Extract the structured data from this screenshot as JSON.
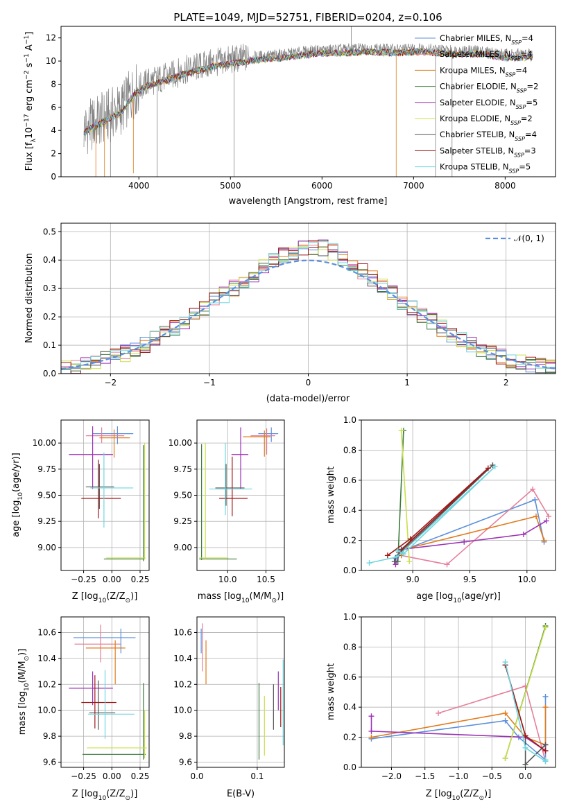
{
  "page": {
    "title": "PLATE=1049, MJD=52751, FIBERID=0204, z=0.106"
  },
  "legend_colors": [
    {
      "name": "Chabrier MILES",
      "n": "4",
      "color": "#5b8fdc"
    },
    {
      "name": "Salpeter MILES",
      "n": "4",
      "color": "#e57f9b"
    },
    {
      "name": "Kroupa MILES",
      "n": "4",
      "color": "#e07b1c"
    },
    {
      "name": "Chabrier ELODIE",
      "n": "2",
      "color": "#3b7a3b"
    },
    {
      "name": "Salpeter ELODIE",
      "n": "5",
      "color": "#9b33b5"
    },
    {
      "name": "Kroupa ELODIE",
      "n": "2",
      "color": "#c9e04a"
    },
    {
      "name": "Chabrier STELIB",
      "n": "4",
      "color": "#555555"
    },
    {
      "name": "Salpeter STELIB",
      "n": "3",
      "color": "#a01818"
    },
    {
      "name": "Kroupa STELIB",
      "n": "5",
      "color": "#6fd6df"
    }
  ],
  "chart_data": [
    {
      "id": "spectrum",
      "type": "line",
      "xlabel": "wavelength [Angstrom, rest frame]",
      "ylabel": "Flux [f",
      "ylabel_sub": "λ",
      "ylabel_rest": "10",
      "ylabel_exp": "−17",
      "ylabel_tail": " erg cm",
      "xlim": [
        3150,
        8550
      ],
      "ylim": [
        0,
        13
      ],
      "xticks": [
        4000,
        5000,
        6000,
        7000,
        8000
      ],
      "yticks": [
        0,
        2,
        4,
        6,
        8,
        10,
        12
      ],
      "legend_placement": "right",
      "legend_suffix_sub": "SSP",
      "series_note": "data (grey) and 9 model fits",
      "continuum": [
        [
          3400,
          4.1
        ],
        [
          3600,
          5.0
        ],
        [
          3800,
          5.8
        ],
        [
          3950,
          7.4
        ],
        [
          4100,
          8.2
        ],
        [
          4300,
          8.6
        ],
        [
          4500,
          9.2
        ],
        [
          4800,
          9.8
        ],
        [
          5000,
          10.1
        ],
        [
          5300,
          10.4
        ],
        [
          5600,
          10.6
        ],
        [
          5900,
          10.9
        ],
        [
          6200,
          11.0
        ],
        [
          6500,
          11.1
        ],
        [
          6800,
          11.0
        ],
        [
          7100,
          11.1
        ],
        [
          7400,
          10.9
        ],
        [
          7700,
          10.9
        ],
        [
          8000,
          10.6
        ],
        [
          8300,
          10.6
        ]
      ]
    },
    {
      "id": "residuals",
      "type": "line",
      "xlabel": "(data-model)/error",
      "ylabel": "Normed distribution",
      "xlim": [
        -2.5,
        2.5
      ],
      "ylim": [
        0,
        0.53
      ],
      "xticks": [
        -2,
        -1,
        0,
        1,
        2
      ],
      "xtick_labels": [
        "−2",
        "−1",
        "0",
        "1",
        "2"
      ],
      "yticks": [
        0.0,
        0.1,
        0.2,
        0.3,
        0.4,
        0.5
      ],
      "ytick_labels": [
        "0.0",
        "0.1",
        "0.2",
        "0.3",
        "0.4",
        "0.5"
      ],
      "grid": true,
      "legend": "𝒩(0, 1)",
      "legend_placement": "top-right",
      "gauss_sigma": 1.0
    },
    {
      "id": "age-vs-Z",
      "type": "scatter",
      "xlabel": "Z [log",
      "xlabel_sub": "10",
      "xlabel_tail": "(Z/Z",
      "xlabel_end": ")]",
      "ylabel": "age  [log",
      "ylabel_sub": "10",
      "ylabel_tail": "(age/yr)]",
      "xlim": [
        -0.45,
        0.33
      ],
      "ylim": [
        8.78,
        10.22
      ],
      "xticks": [
        -0.25,
        0.0,
        0.25
      ],
      "xtick_labels": [
        "−0.25",
        "0.00",
        "0.25"
      ],
      "yticks": [
        9.0,
        9.25,
        9.5,
        9.75,
        10.0
      ],
      "ytick_labels": [
        "9.00",
        "9.25",
        "9.50",
        "9.75",
        "10.00"
      ],
      "grid": true,
      "crosses": [
        {
          "x": 0.05,
          "y": 10.09,
          "xl": -0.17,
          "xh": 0.19,
          "yl": 9.99,
          "yh": 10.16,
          "c": 0
        },
        {
          "x": -0.09,
          "y": 10.07,
          "xl": -0.23,
          "xh": 0.11,
          "yl": 10.0,
          "yh": 10.15,
          "c": 1
        },
        {
          "x": 0.02,
          "y": 10.05,
          "xl": -0.11,
          "xh": 0.16,
          "yl": 9.86,
          "yh": 10.13,
          "c": 2
        },
        {
          "x": 0.28,
          "y": 8.89,
          "xl": -0.07,
          "xh": 0.29,
          "yl": 8.87,
          "yh": 9.98,
          "c": 3
        },
        {
          "x": -0.17,
          "y": 9.89,
          "xl": -0.38,
          "xh": 0.01,
          "yl": 9.56,
          "yh": 10.16,
          "c": 4
        },
        {
          "x": 0.29,
          "y": 8.9,
          "xl": -0.05,
          "xh": 0.3,
          "yl": 8.89,
          "yh": 10.0,
          "c": 5
        },
        {
          "x": -0.11,
          "y": 9.58,
          "xl": -0.23,
          "xh": 0.02,
          "yl": 9.37,
          "yh": 9.8,
          "c": 6
        },
        {
          "x": -0.12,
          "y": 9.47,
          "xl": -0.27,
          "xh": 0.08,
          "yl": 9.28,
          "yh": 9.84,
          "c": 7
        },
        {
          "x": -0.07,
          "y": 9.57,
          "xl": -0.19,
          "xh": 0.19,
          "yl": 9.19,
          "yh": 9.91,
          "c": 8
        }
      ]
    },
    {
      "id": "age-vs-mass",
      "type": "scatter",
      "xlabel": "mass [log",
      "xlabel_sub": "10",
      "xlabel_tail": "(M/M",
      "xlabel_end": ")]",
      "xlim": [
        9.6,
        10.74
      ],
      "ylim": [
        8.78,
        10.22
      ],
      "xticks": [
        10.0,
        10.5
      ],
      "xtick_labels": [
        "10.0",
        "10.5"
      ],
      "yticks": [
        9.0,
        9.25,
        9.5,
        9.75,
        10.0
      ],
      "ytick_labels": [
        "9.00",
        "9.25",
        "9.50",
        "9.75",
        "10.00"
      ],
      "grid": true,
      "crosses": [
        {
          "x": 10.57,
          "y": 10.09,
          "xl": 10.4,
          "xh": 10.66,
          "yl": 10.01,
          "yh": 10.15,
          "c": 0
        },
        {
          "x": 10.51,
          "y": 10.07,
          "xl": 10.3,
          "xh": 10.62,
          "yl": 9.89,
          "yh": 10.14,
          "c": 1
        },
        {
          "x": 10.48,
          "y": 10.06,
          "xl": 10.2,
          "xh": 10.56,
          "yl": 9.87,
          "yh": 10.12,
          "c": 2
        },
        {
          "x": 9.66,
          "y": 8.89,
          "xl": 9.63,
          "xh": 10.12,
          "yl": 8.88,
          "yh": 9.99,
          "c": 3
        },
        {
          "x": 10.17,
          "y": 9.89,
          "xl": 10.05,
          "xh": 10.27,
          "yl": 9.56,
          "yh": 10.15,
          "c": 4
        },
        {
          "x": 9.71,
          "y": 8.9,
          "xl": 9.63,
          "xh": 10.01,
          "yl": 8.89,
          "yh": 10.0,
          "c": 5
        },
        {
          "x": 9.98,
          "y": 9.57,
          "xl": 9.84,
          "xh": 10.22,
          "yl": 9.4,
          "yh": 9.8,
          "c": 6
        },
        {
          "x": 10.06,
          "y": 9.47,
          "xl": 9.89,
          "xh": 10.26,
          "yl": 9.3,
          "yh": 9.87,
          "c": 7
        },
        {
          "x": 9.97,
          "y": 9.56,
          "xl": 9.76,
          "xh": 10.32,
          "yl": 9.31,
          "yh": 10.0,
          "c": 8
        }
      ]
    },
    {
      "id": "mass-weight-vs-age",
      "type": "line",
      "xlabel": "age  [log",
      "xlabel_sub": "10",
      "xlabel_tail": "(age/yr)]",
      "ylabel": "mass weight",
      "xlim": [
        8.55,
        10.25
      ],
      "ylim": [
        0.0,
        1.0
      ],
      "xticks": [
        9.0,
        9.5,
        10.0
      ],
      "xtick_labels": [
        "9.0",
        "9.5",
        "10.0"
      ],
      "yticks": [
        0.0,
        0.2,
        0.4,
        0.6,
        0.8,
        1.0
      ],
      "ytick_labels": [
        "0.0",
        "0.2",
        "0.4",
        "0.6",
        "0.8",
        "1.0"
      ],
      "grid": true,
      "series": [
        {
          "c": 0,
          "points": [
            [
              8.85,
              0.08
            ],
            [
              8.9,
              0.13
            ],
            [
              10.07,
              0.47
            ],
            [
              10.15,
              0.19
            ]
          ]
        },
        {
          "c": 1,
          "points": [
            [
              8.9,
              0.1
            ],
            [
              9.3,
              0.04
            ],
            [
              10.05,
              0.54
            ],
            [
              10.19,
              0.36
            ]
          ]
        },
        {
          "c": 2,
          "points": [
            [
              8.9,
              0.1
            ],
            [
              8.92,
              0.14
            ],
            [
              10.08,
              0.36
            ],
            [
              10.15,
              0.2
            ]
          ]
        },
        {
          "c": 3,
          "points": [
            [
              8.87,
              0.06
            ],
            [
              8.92,
              0.93
            ]
          ]
        },
        {
          "c": 4,
          "points": [
            [
              8.85,
              0.04
            ],
            [
              8.9,
              0.14
            ],
            [
              9.45,
              0.19
            ],
            [
              9.97,
              0.24
            ],
            [
              10.17,
              0.33
            ]
          ]
        },
        {
          "c": 5,
          "points": [
            [
              8.9,
              0.93
            ],
            [
              8.97,
              0.06
            ]
          ]
        },
        {
          "c": 6,
          "points": [
            [
              8.84,
              0.06
            ],
            [
              8.9,
              0.14
            ],
            [
              9.7,
              0.7
            ],
            [
              8.87,
              0.1
            ]
          ]
        },
        {
          "c": 7,
          "points": [
            [
              8.78,
              0.1
            ],
            [
              8.98,
              0.21
            ],
            [
              9.66,
              0.68
            ],
            [
              8.88,
              0.12
            ]
          ]
        },
        {
          "c": 8,
          "points": [
            [
              8.62,
              0.05
            ],
            [
              8.86,
              0.09
            ],
            [
              9.72,
              0.69
            ],
            [
              8.92,
              0.11
            ],
            [
              8.87,
              0.13
            ]
          ]
        }
      ]
    },
    {
      "id": "mass-vs-Z",
      "type": "scatter",
      "ylabel": "mass [log",
      "ylabel_sub": "10",
      "ylabel_tail": "(M/M",
      "ylabel_end": ")]",
      "xlabel": "Z [log",
      "xlabel_sub": "10",
      "xlabel_tail": "(Z/Z",
      "xlabel_end": ")]",
      "xlim": [
        -0.45,
        0.33
      ],
      "ylim": [
        9.56,
        10.72
      ],
      "xticks": [
        -0.25,
        0.0,
        0.25
      ],
      "xtick_labels": [
        "−0.25",
        "0.00",
        "0.25"
      ],
      "yticks": [
        9.6,
        9.8,
        10.0,
        10.2,
        10.4,
        10.6
      ],
      "ytick_labels": [
        "9.6",
        "9.8",
        "10.0",
        "10.2",
        "10.4",
        "10.6"
      ],
      "grid": true,
      "crosses": [
        {
          "x": 0.08,
          "y": 10.56,
          "xl": -0.34,
          "xh": 0.21,
          "yl": 10.44,
          "yh": 10.63,
          "c": 0
        },
        {
          "x": -0.1,
          "y": 10.51,
          "xl": -0.33,
          "xh": 0.08,
          "yl": 10.37,
          "yh": 10.66,
          "c": 1
        },
        {
          "x": 0.03,
          "y": 10.48,
          "xl": -0.23,
          "xh": 0.12,
          "yl": 10.2,
          "yh": 10.54,
          "c": 2
        },
        {
          "x": 0.28,
          "y": 9.66,
          "xl": -0.26,
          "xh": 0.3,
          "yl": 9.62,
          "yh": 10.21,
          "c": 3
        },
        {
          "x": -0.17,
          "y": 10.17,
          "xl": -0.38,
          "xh": 0.01,
          "yl": 10.04,
          "yh": 10.3,
          "c": 4
        },
        {
          "x": 0.29,
          "y": 9.71,
          "xl": -0.22,
          "xh": 0.31,
          "yl": 9.63,
          "yh": 10.0,
          "c": 5
        },
        {
          "x": -0.12,
          "y": 9.98,
          "xl": -0.2,
          "xh": 0.03,
          "yl": 9.85,
          "yh": 10.23,
          "c": 6
        },
        {
          "x": -0.15,
          "y": 10.06,
          "xl": -0.27,
          "xh": 0.04,
          "yl": 9.86,
          "yh": 10.27,
          "c": 7
        },
        {
          "x": -0.06,
          "y": 9.97,
          "xl": -0.21,
          "xh": 0.2,
          "yl": 9.78,
          "yh": 10.31,
          "c": 8
        }
      ]
    },
    {
      "id": "mass-vs-ebv",
      "type": "scatter",
      "xlabel": "E(B-V)",
      "xlim": [
        0.0,
        0.145
      ],
      "ylim": [
        9.56,
        10.72
      ],
      "xticks": [
        0.0,
        0.1
      ],
      "xtick_labels": [
        "0.0",
        "0.1"
      ],
      "yticks": [
        9.6,
        9.8,
        10.0,
        10.2,
        10.4,
        10.6
      ],
      "ytick_labels": [
        "9.6",
        "9.8",
        "10.0",
        "10.2",
        "10.4",
        "10.6"
      ],
      "grid": true,
      "crosses": [
        {
          "x": 0.007,
          "y": 10.56,
          "xl": 0.007,
          "xh": 0.007,
          "yl": 10.44,
          "yh": 10.63,
          "c": 0
        },
        {
          "x": 0.009,
          "y": 10.51,
          "xl": 0.009,
          "xh": 0.009,
          "yl": 10.3,
          "yh": 10.67,
          "c": 1
        },
        {
          "x": 0.015,
          "y": 10.48,
          "xl": 0.015,
          "xh": 0.015,
          "yl": 10.2,
          "yh": 10.54,
          "c": 2
        },
        {
          "x": 0.103,
          "y": 9.66,
          "xl": 0.103,
          "xh": 0.103,
          "yl": 9.62,
          "yh": 10.21,
          "c": 3
        },
        {
          "x": 0.135,
          "y": 10.17,
          "xl": 0.135,
          "xh": 0.135,
          "yl": 10.0,
          "yh": 10.3,
          "c": 4
        },
        {
          "x": 0.112,
          "y": 9.71,
          "xl": 0.112,
          "xh": 0.112,
          "yl": 9.65,
          "yh": 10.11,
          "c": 5
        },
        {
          "x": 0.127,
          "y": 9.98,
          "xl": 0.127,
          "xh": 0.127,
          "yl": 9.85,
          "yh": 10.2,
          "c": 6
        },
        {
          "x": 0.139,
          "y": 10.06,
          "xl": 0.139,
          "xh": 0.139,
          "yl": 9.87,
          "yh": 10.18,
          "c": 7
        },
        {
          "x": 0.143,
          "y": 9.97,
          "xl": 0.143,
          "xh": 0.143,
          "yl": 9.73,
          "yh": 10.39,
          "c": 8
        }
      ]
    },
    {
      "id": "mass-weight-vs-Z",
      "type": "line",
      "xlabel": "Z [log",
      "xlabel_sub": "10",
      "xlabel_tail": "(Z/Z",
      "xlabel_end": ")]",
      "ylabel": "mass weight",
      "xlim": [
        -2.45,
        0.45
      ],
      "ylim": [
        0.0,
        1.0
      ],
      "xticks": [
        -2.0,
        -1.5,
        -1.0,
        -0.5,
        0.0
      ],
      "xtick_labels": [
        "−2.0",
        "−1.5",
        "−1.0",
        "−0.5",
        "0.0"
      ],
      "yticks": [
        0.0,
        0.2,
        0.4,
        0.6,
        0.8,
        1.0
      ],
      "ytick_labels": [
        "0.0",
        "0.2",
        "0.4",
        "0.6",
        "0.8",
        "1.0"
      ],
      "grid": true,
      "series": [
        {
          "c": 0,
          "points": [
            [
              -2.3,
              0.19
            ],
            [
              -0.3,
              0.31
            ],
            [
              -0.1,
              0.2
            ],
            [
              0.3,
              0.05
            ],
            [
              0.3,
              0.47
            ]
          ]
        },
        {
          "c": 1,
          "points": [
            [
              -1.3,
              0.36
            ],
            [
              0.0,
              0.54
            ],
            [
              0.3,
              0.04
            ]
          ]
        },
        {
          "c": 2,
          "points": [
            [
              -2.3,
              0.2
            ],
            [
              -0.3,
              0.36
            ],
            [
              0.0,
              0.2
            ],
            [
              0.3,
              0.15
            ],
            [
              0.3,
              0.4
            ]
          ]
        },
        {
          "c": 3,
          "points": [
            [
              -0.3,
              0.06
            ],
            [
              0.3,
              0.94
            ]
          ]
        },
        {
          "c": 4,
          "points": [
            [
              -2.3,
              0.34
            ],
            [
              -2.3,
              0.24
            ],
            [
              0.0,
              0.2
            ],
            [
              0.3,
              0.11
            ],
            [
              0.3,
              0.15
            ]
          ]
        },
        {
          "c": 5,
          "points": [
            [
              -0.3,
              0.06
            ],
            [
              0.3,
              0.93
            ]
          ]
        },
        {
          "c": 6,
          "points": [
            [
              -0.3,
              0.68
            ],
            [
              0.0,
              0.21
            ],
            [
              0.0,
              0.02
            ],
            [
              0.3,
              0.15
            ]
          ]
        },
        {
          "c": 7,
          "points": [
            [
              -0.3,
              0.68
            ],
            [
              0.0,
              0.21
            ],
            [
              0.3,
              0.11
            ]
          ]
        },
        {
          "c": 8,
          "points": [
            [
              -0.3,
              0.7
            ],
            [
              0.0,
              0.13
            ],
            [
              0.3,
              0.04
            ],
            [
              0.3,
              0.05
            ]
          ]
        }
      ]
    }
  ]
}
